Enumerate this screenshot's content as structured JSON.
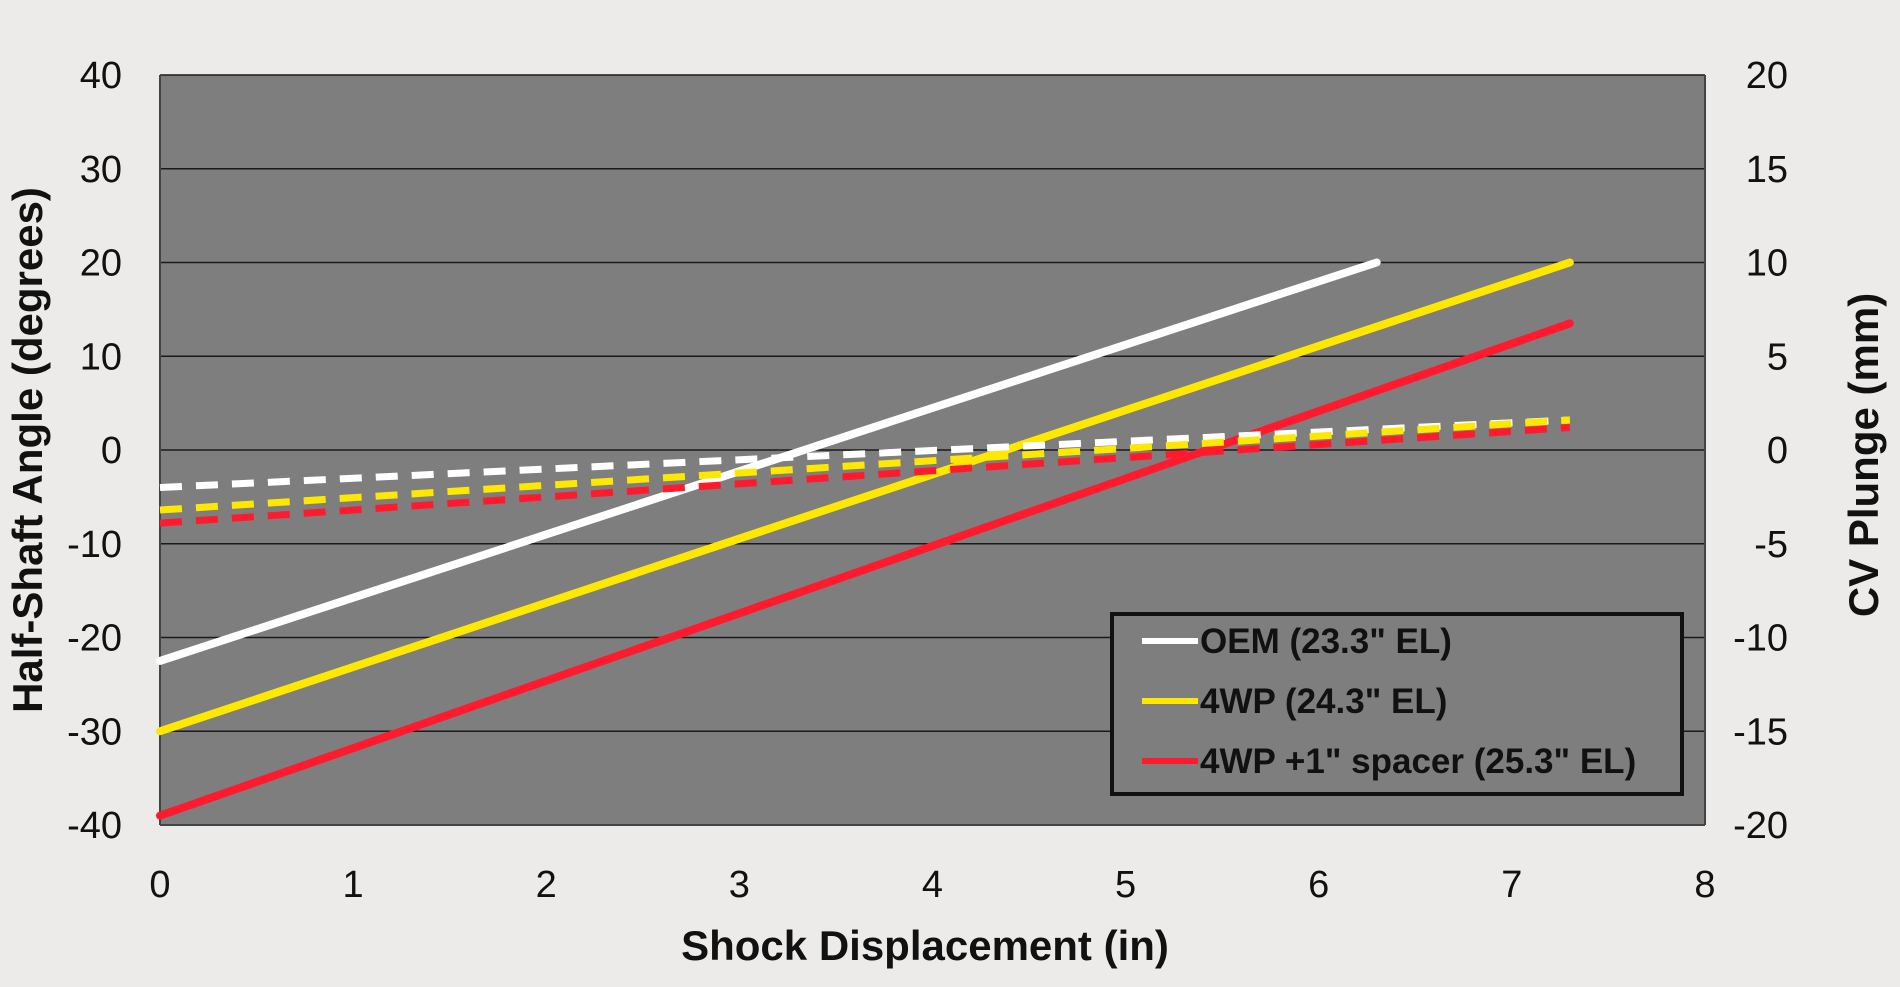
{
  "chart_data": {
    "type": "line",
    "xlabel": "Shock Displacement (in)",
    "ylabel": "Half-Shaft Angle (degrees)",
    "y2label": "CV Plunge (mm)",
    "xlim": [
      0,
      8
    ],
    "ylim": [
      -40,
      40
    ],
    "y2lim": [
      -20,
      20
    ],
    "xticks": [
      "0",
      "1",
      "2",
      "3",
      "4",
      "5",
      "6",
      "7",
      "8"
    ],
    "yticks": [
      "40",
      "30",
      "20",
      "10",
      "0",
      "-10",
      "-20",
      "-30",
      "-40"
    ],
    "y2ticks": [
      "20",
      "15",
      "10",
      "5",
      "0",
      "-5",
      "-10",
      "-15",
      "-20"
    ],
    "grid": true,
    "plot_background": "#7e7e7e",
    "legend_position": "bottom-right",
    "series": [
      {
        "name": "OEM (23.3\" EL)",
        "color": "#ffffff",
        "axis": "left",
        "style": "solid",
        "x": [
          0,
          6.3
        ],
        "y": [
          -22.5,
          20
        ]
      },
      {
        "name": "4WP (24.3\" EL)",
        "color": "#ffe800",
        "axis": "left",
        "style": "solid",
        "x": [
          0,
          7.3
        ],
        "y": [
          -30,
          20
        ]
      },
      {
        "name": "4WP +1\" spacer (25.3\" EL)",
        "color": "#ff1a2e",
        "axis": "left",
        "style": "solid",
        "x": [
          0,
          7.3
        ],
        "y": [
          -39,
          13.5
        ]
      },
      {
        "name": "",
        "color": "#ffffff",
        "axis": "right",
        "style": "dashed",
        "x": [
          0,
          7.3
        ],
        "y": [
          -2,
          1.6
        ]
      },
      {
        "name": "",
        "color": "#ffe800",
        "axis": "right",
        "style": "dashed",
        "x": [
          0,
          7.3
        ],
        "y": [
          -3.2,
          1.6
        ]
      },
      {
        "name": "",
        "color": "#ff1a2e",
        "axis": "right",
        "style": "dashed",
        "x": [
          0,
          7.3
        ],
        "y": [
          -3.9,
          1.2
        ]
      }
    ]
  }
}
